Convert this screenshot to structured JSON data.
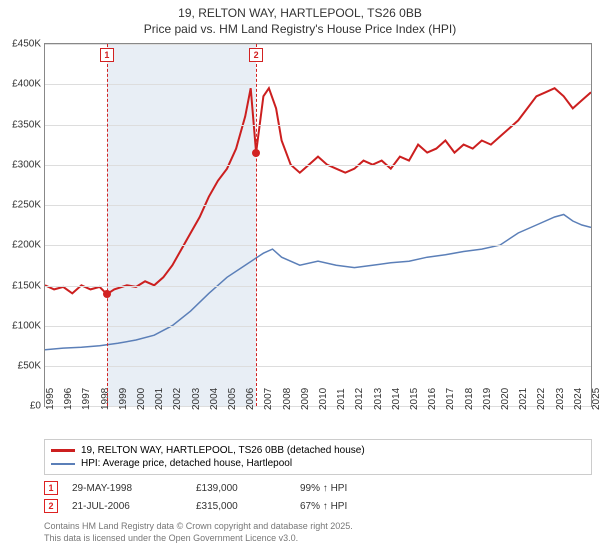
{
  "title": {
    "line1": "19, RELTON WAY, HARTLEPOOL, TS26 0BB",
    "line2": "Price paid vs. HM Land Registry's House Price Index (HPI)"
  },
  "chart": {
    "type": "line",
    "background_color": "#ffffff",
    "grid_color": "#dddddd",
    "border_color": "#888888",
    "ylim": [
      0,
      450000
    ],
    "ytick_step": 50000,
    "yticks": [
      "£0",
      "£50K",
      "£100K",
      "£150K",
      "£200K",
      "£250K",
      "£300K",
      "£350K",
      "£400K",
      "£450K"
    ],
    "xlim": [
      1995,
      2025
    ],
    "xticks": [
      1995,
      1996,
      1997,
      1998,
      1999,
      2000,
      2001,
      2002,
      2003,
      2004,
      2005,
      2006,
      2007,
      2008,
      2009,
      2010,
      2011,
      2012,
      2013,
      2014,
      2015,
      2016,
      2017,
      2018,
      2019,
      2020,
      2021,
      2022,
      2023,
      2024,
      2025
    ],
    "shaded_range": {
      "x0": 1998.4,
      "x1": 2006.6,
      "color": "#e8eef5"
    },
    "markers": [
      {
        "label": "1",
        "x": 1998.4,
        "y": 139000,
        "color": "#d22222"
      },
      {
        "label": "2",
        "x": 2006.6,
        "y": 315000,
        "color": "#d22222"
      }
    ],
    "series": [
      {
        "name": "19, RELTON WAY, HARTLEPOOL, TS26 0BB (detached house)",
        "color": "#cc1f1f",
        "line_width": 2,
        "data": [
          [
            1995,
            150000
          ],
          [
            1995.5,
            145000
          ],
          [
            1996,
            148000
          ],
          [
            1996.5,
            140000
          ],
          [
            1997,
            150000
          ],
          [
            1997.5,
            145000
          ],
          [
            1998,
            148000
          ],
          [
            1998.4,
            139000
          ],
          [
            1998.8,
            145000
          ],
          [
            1999.5,
            150000
          ],
          [
            2000,
            148000
          ],
          [
            2000.5,
            155000
          ],
          [
            2001,
            150000
          ],
          [
            2001.5,
            160000
          ],
          [
            2002,
            175000
          ],
          [
            2002.5,
            195000
          ],
          [
            2003,
            215000
          ],
          [
            2003.5,
            235000
          ],
          [
            2004,
            260000
          ],
          [
            2004.5,
            280000
          ],
          [
            2005,
            295000
          ],
          [
            2005.5,
            320000
          ],
          [
            2006,
            360000
          ],
          [
            2006.3,
            395000
          ],
          [
            2006.6,
            315000
          ],
          [
            2007,
            385000
          ],
          [
            2007.3,
            395000
          ],
          [
            2007.7,
            370000
          ],
          [
            2008,
            330000
          ],
          [
            2008.5,
            300000
          ],
          [
            2009,
            290000
          ],
          [
            2009.5,
            300000
          ],
          [
            2010,
            310000
          ],
          [
            2010.5,
            300000
          ],
          [
            2011,
            295000
          ],
          [
            2011.5,
            290000
          ],
          [
            2012,
            295000
          ],
          [
            2012.5,
            305000
          ],
          [
            2013,
            300000
          ],
          [
            2013.5,
            305000
          ],
          [
            2014,
            295000
          ],
          [
            2014.5,
            310000
          ],
          [
            2015,
            305000
          ],
          [
            2015.5,
            325000
          ],
          [
            2016,
            315000
          ],
          [
            2016.5,
            320000
          ],
          [
            2017,
            330000
          ],
          [
            2017.5,
            315000
          ],
          [
            2018,
            325000
          ],
          [
            2018.5,
            320000
          ],
          [
            2019,
            330000
          ],
          [
            2019.5,
            325000
          ],
          [
            2020,
            335000
          ],
          [
            2020.5,
            345000
          ],
          [
            2021,
            355000
          ],
          [
            2021.5,
            370000
          ],
          [
            2022,
            385000
          ],
          [
            2022.5,
            390000
          ],
          [
            2023,
            395000
          ],
          [
            2023.5,
            385000
          ],
          [
            2024,
            370000
          ],
          [
            2024.5,
            380000
          ],
          [
            2025,
            390000
          ]
        ]
      },
      {
        "name": "HPI: Average price, detached house, Hartlepool",
        "color": "#5b7fb8",
        "line_width": 1.5,
        "data": [
          [
            1995,
            70000
          ],
          [
            1996,
            72000
          ],
          [
            1997,
            73000
          ],
          [
            1998,
            75000
          ],
          [
            1999,
            78000
          ],
          [
            2000,
            82000
          ],
          [
            2001,
            88000
          ],
          [
            2002,
            100000
          ],
          [
            2003,
            118000
          ],
          [
            2004,
            140000
          ],
          [
            2005,
            160000
          ],
          [
            2006,
            175000
          ],
          [
            2007,
            190000
          ],
          [
            2007.5,
            195000
          ],
          [
            2008,
            185000
          ],
          [
            2009,
            175000
          ],
          [
            2010,
            180000
          ],
          [
            2011,
            175000
          ],
          [
            2012,
            172000
          ],
          [
            2013,
            175000
          ],
          [
            2014,
            178000
          ],
          [
            2015,
            180000
          ],
          [
            2016,
            185000
          ],
          [
            2017,
            188000
          ],
          [
            2018,
            192000
          ],
          [
            2019,
            195000
          ],
          [
            2020,
            200000
          ],
          [
            2021,
            215000
          ],
          [
            2022,
            225000
          ],
          [
            2023,
            235000
          ],
          [
            2023.5,
            238000
          ],
          [
            2024,
            230000
          ],
          [
            2024.5,
            225000
          ],
          [
            2025,
            222000
          ]
        ]
      }
    ]
  },
  "legend": {
    "items": [
      {
        "color": "#cc1f1f",
        "label": "19, RELTON WAY, HARTLEPOOL, TS26 0BB (detached house)"
      },
      {
        "color": "#5b7fb8",
        "label": "HPI: Average price, detached house, Hartlepool"
      }
    ]
  },
  "sales": [
    {
      "marker": "1",
      "date": "29-MAY-1998",
      "price": "£139,000",
      "hpi": "99% ↑ HPI"
    },
    {
      "marker": "2",
      "date": "21-JUL-2006",
      "price": "£315,000",
      "hpi": "67% ↑ HPI"
    }
  ],
  "attribution": {
    "line1": "Contains HM Land Registry data © Crown copyright and database right 2025.",
    "line2": "This data is licensed under the Open Government Licence v3.0."
  }
}
